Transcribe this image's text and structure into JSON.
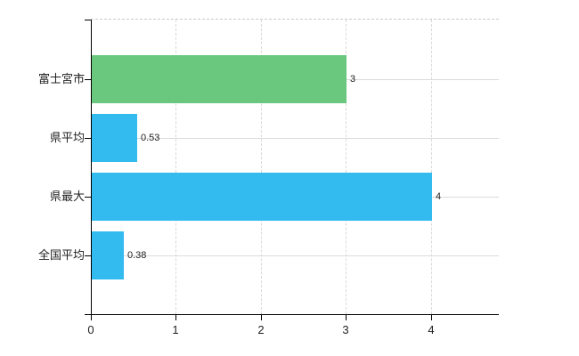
{
  "chart_data": {
    "type": "bar",
    "orientation": "horizontal",
    "title": "",
    "xlabel": "",
    "ylabel": "",
    "categories": [
      "富士宮市",
      "県平均",
      "県最大",
      "全国平均"
    ],
    "values": [
      3,
      0.53,
      4,
      0.38
    ],
    "value_labels": [
      "3",
      "0.53",
      "4",
      "0.38"
    ],
    "bar_colors": [
      "#69c87d",
      "#33bbf0",
      "#33bbf0",
      "#33bbf0"
    ],
    "x_ticks": [
      {
        "value": 0,
        "label": "0"
      },
      {
        "value": 1,
        "label": "1"
      },
      {
        "value": 2,
        "label": "2"
      },
      {
        "value": 3,
        "label": "3"
      },
      {
        "value": 4,
        "label": "4"
      }
    ],
    "xlim": [
      0,
      4.8
    ],
    "grid": "on",
    "legend": "none",
    "colors": {
      "green_bar": "#69c87d",
      "blue_bar": "#33bbf0",
      "axis": "#000000",
      "gridline": "#d9d9d9",
      "text": "#222222",
      "background": "#ffffff"
    }
  }
}
